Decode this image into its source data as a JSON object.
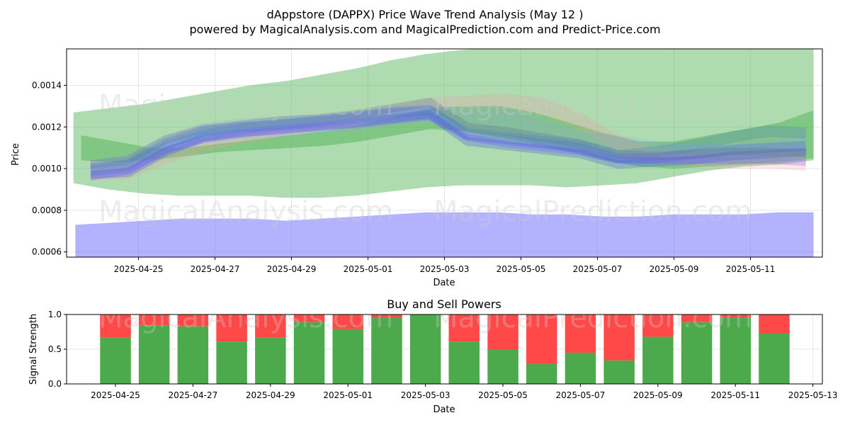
{
  "title": "dAppstore (DAPPX) Price Wave Trend Analysis (May 12 )",
  "subtitle": "powered by MagicalAnalysis.com and MagicalPrediction.com and Predict-Price.com",
  "watermarks": [
    "MagicalAnalysis.com",
    "MagicalPrediction.com"
  ],
  "chart_data": [
    {
      "type": "area",
      "xlabel": "Date",
      "ylabel": "Price",
      "ylim": [
        0.000575,
        0.001575
      ],
      "grid": true,
      "yticks": [
        0.0006,
        0.0008,
        0.001,
        0.0012,
        0.0014
      ],
      "ytick_labels": [
        "0.0006",
        "0.0008",
        "0.0010",
        "0.0012",
        "0.0014"
      ],
      "xticks": [
        "2025-04-25",
        "2025-04-27",
        "2025-04-29",
        "2025-05-01",
        "2025-05-03",
        "2025-05-05",
        "2025-05-07",
        "2025-05-09",
        "2025-05-11"
      ],
      "x_days": [
        -2,
        -1,
        0,
        1,
        2,
        3,
        4,
        5,
        6,
        7,
        8,
        9,
        10,
        11,
        12,
        13,
        14,
        15,
        16,
        17,
        18,
        19,
        20
      ],
      "bands": [
        {
          "name": "green-upper-band",
          "color": "#4caf50",
          "upper": [
            0.00127,
            0.00129,
            0.00131,
            0.00134,
            0.00137,
            0.0014,
            0.00142,
            0.00145,
            0.00148,
            0.00152,
            0.00155,
            0.00157,
            0.00158,
            0.00158,
            0.00158,
            0.00158,
            0.00159,
            0.0016,
            0.00161,
            0.00162,
            0.00163,
            0.00163
          ],
          "lower": [
            0.00093,
            0.0009,
            0.00088,
            0.00087,
            0.00087,
            0.00087,
            0.00086,
            0.00086,
            0.00087,
            0.00089,
            0.00091,
            0.00092,
            0.00092,
            0.00092,
            0.00091,
            0.00092,
            0.00093,
            0.00096,
            0.00099,
            0.00101,
            0.00102,
            0.00104
          ]
        },
        {
          "name": "green-lower-band",
          "color": "#4caf50",
          "upper": [
            0.00116,
            0.00113,
            0.0011,
            0.0011,
            0.00112,
            0.00114,
            0.00116,
            0.00118,
            0.00121,
            0.00125,
            0.00129,
            0.0013,
            0.0013,
            0.00127,
            0.00122,
            0.00117,
            0.00113,
            0.00113,
            0.00116,
            0.00119,
            0.00122,
            0.00128
          ],
          "lower": [
            0.00104,
            0.00103,
            0.00104,
            0.00106,
            0.00108,
            0.00109,
            0.0011,
            0.00111,
            0.00113,
            0.00116,
            0.00119,
            0.00118,
            0.00115,
            0.00112,
            0.00108,
            0.00104,
            0.00101,
            0.001,
            0.00101,
            0.00102,
            0.00103,
            0.00105
          ]
        },
        {
          "name": "blue-support-band",
          "color": "#6666ff",
          "upper": [
            0.00073,
            0.00074,
            0.00075,
            0.00076,
            0.00076,
            0.00076,
            0.00075,
            0.00076,
            0.00077,
            0.00078,
            0.00079,
            0.00079,
            0.00079,
            0.00078,
            0.00078,
            0.00077,
            0.00077,
            0.00078,
            0.00078,
            0.00078,
            0.00079,
            0.00079
          ],
          "lower": [
            0.00055,
            0.00055,
            0.00055,
            0.00055,
            0.00055,
            0.00055,
            0.00055,
            0.00055,
            0.00055,
            0.00055,
            0.00055,
            0.00055,
            0.00055,
            0.00055,
            0.00055,
            0.00055,
            0.00055,
            0.00055,
            0.00055,
            0.00055,
            0.00055,
            0.00055
          ]
        },
        {
          "name": "pink-band",
          "color": "#ff8fa0",
          "upper": [
            0.00101,
            0.00102,
            0.00109,
            0.00114,
            0.00118,
            0.00121,
            0.00124,
            0.00127,
            0.0013,
            0.00134,
            0.00135,
            0.00136,
            0.00134,
            0.00127,
            0.00116,
            0.00109,
            0.00108,
            0.00108,
            0.0011,
            0.00111
          ],
          "lower": [
            0.00094,
            0.00095,
            0.00102,
            0.00108,
            0.00112,
            0.00115,
            0.00118,
            0.00121,
            0.00124,
            0.00128,
            0.00129,
            0.00129,
            0.00126,
            0.00119,
            0.00108,
            0.00102,
            0.00101,
            0.001,
            0.001,
            0.00099
          ]
        },
        {
          "name": "lavender-band",
          "color": "#9999ff",
          "upper": [
            0.00104,
            0.00107,
            0.00116,
            0.00122,
            0.00124,
            0.00125,
            0.00126,
            0.00127,
            0.0013,
            0.00131,
            0.00129,
            0.00129,
            0.00124,
            0.00118,
            0.00116,
            0.00113,
            0.00112,
            0.00112,
            0.00114,
            0.00116
          ],
          "lower": [
            0.00095,
            0.00097,
            0.00106,
            0.00112,
            0.00114,
            0.00115,
            0.00117,
            0.00118,
            0.00121,
            0.00122,
            0.00119,
            0.00117,
            0.0011,
            0.00107,
            0.00104,
            0.00102,
            0.00102,
            0.00102,
            0.00103,
            0.00104
          ]
        }
      ],
      "lines": [
        {
          "name": "blue-wave-1",
          "color": "#4060ff",
          "width": 14,
          "y": [
            0.001,
            0.00102,
            0.00112,
            0.00118,
            0.0012,
            0.00121,
            0.00123,
            0.00125,
            0.00127,
            0.00128,
            0.00116,
            0.00114,
            0.00112,
            0.0011,
            0.00105,
            0.00105,
            0.00107,
            0.00109,
            0.0011,
            0.00111
          ]
        },
        {
          "name": "blue-wave-2",
          "color": "#3355dd",
          "width": 12,
          "y": [
            0.00097,
            0.00098,
            0.00108,
            0.00115,
            0.00117,
            0.00119,
            0.0012,
            0.00122,
            0.00124,
            0.00126,
            0.00113,
            0.00111,
            0.00109,
            0.00107,
            0.00102,
            0.00103,
            0.00104,
            0.00106,
            0.00107,
            0.00108
          ]
        },
        {
          "name": "slate-wave",
          "color": "#607090",
          "width": 12,
          "y": [
            0.00102,
            0.00104,
            0.00114,
            0.00119,
            0.00121,
            0.00123,
            0.00124,
            0.00126,
            0.00129,
            0.00132,
            0.0012,
            0.00118,
            0.00115,
            0.00112,
            0.00107,
            0.00106,
            0.00107,
            0.00108,
            0.00108,
            0.00107
          ]
        },
        {
          "name": "steel-wave",
          "color": "#5080c0",
          "width": 16,
          "y": [
            0.00099,
            0.00101,
            0.0011,
            0.00116,
            0.00119,
            0.00121,
            0.00122,
            0.00124,
            0.00126,
            0.00127,
            0.00117,
            0.00115,
            0.00113,
            0.00111,
            0.00106,
            0.00108,
            0.00111,
            0.00115,
            0.00118,
            0.00117
          ]
        },
        {
          "name": "violet-wave",
          "color": "#7a55ff",
          "width": 10,
          "y": [
            0.00096,
            0.00099,
            0.00109,
            0.00114,
            0.00117,
            0.00118,
            0.0012,
            0.00121,
            0.00123,
            0.00125,
            0.00115,
            0.00112,
            0.0011,
            0.00108,
            0.00104,
            0.00104,
            0.00104,
            0.00104,
            0.00104,
            0.00103
          ]
        }
      ]
    },
    {
      "type": "bar",
      "title": "Buy and Sell Powers",
      "xlabel": "Date",
      "ylabel": "Signal Strength",
      "ylim": [
        0.0,
        1.0
      ],
      "yticks": [
        0.0,
        0.5,
        1.0
      ],
      "ytick_labels": [
        "0.0",
        "0.5",
        "1.0"
      ],
      "xticks": [
        "2025-04-25",
        "2025-04-27",
        "2025-04-29",
        "2025-05-01",
        "2025-05-03",
        "2025-05-05",
        "2025-05-07",
        "2025-05-09",
        "2025-05-11",
        "2025-05-13"
      ],
      "categories": [
        "2025-04-25",
        "2025-04-26",
        "2025-04-27",
        "2025-04-28",
        "2025-04-29",
        "2025-04-30",
        "2025-05-01",
        "2025-05-02",
        "2025-05-03",
        "2025-05-04",
        "2025-05-05",
        "2025-05-06",
        "2025-05-07",
        "2025-05-08",
        "2025-05-09",
        "2025-05-10",
        "2025-05-11",
        "2025-05-12"
      ],
      "series": [
        {
          "name": "Buy",
          "color": "#4caa4c",
          "values": [
            0.67,
            0.84,
            0.83,
            0.61,
            0.67,
            0.89,
            0.79,
            0.95,
            1.0,
            0.61,
            0.5,
            0.29,
            0.45,
            0.34,
            0.68,
            0.89,
            0.95,
            0.73
          ]
        },
        {
          "name": "Sell",
          "color": "#ff4848",
          "values": [
            0.33,
            0.16,
            0.17,
            0.39,
            0.33,
            0.11,
            0.21,
            0.05,
            0.0,
            0.39,
            0.5,
            0.71,
            0.55,
            0.66,
            0.32,
            0.11,
            0.05,
            0.27
          ]
        }
      ]
    }
  ]
}
